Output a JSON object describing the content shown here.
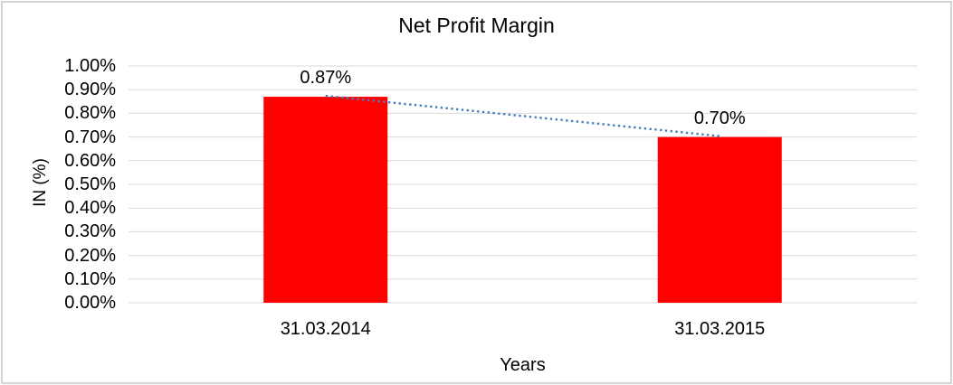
{
  "chart_data": {
    "type": "bar",
    "title": "Net Profit Margin",
    "xlabel": "Years",
    "ylabel": "IN (%)",
    "categories": [
      "31.03.2014",
      "31.03.2015"
    ],
    "values": [
      0.87,
      0.7
    ],
    "data_labels": [
      "0.87%",
      "0.70%"
    ],
    "ylim": [
      0,
      1.0
    ],
    "ytick_step": 0.1,
    "ytick_labels": [
      "0.00%",
      "0.10%",
      "0.20%",
      "0.30%",
      "0.40%",
      "0.50%",
      "0.60%",
      "0.70%",
      "0.80%",
      "0.90%",
      "1.00%"
    ],
    "grid": true,
    "legend": "none",
    "bar_color": "#FF0000",
    "gridline_color": "#D9D9D9",
    "text_color": "#000000",
    "background": "#FFFFFF",
    "border_color": "#D3D3D3",
    "trendline": {
      "type": "linear",
      "style": "dotted",
      "color": "#4A7EBB",
      "points": [
        0.87,
        0.7
      ]
    }
  }
}
